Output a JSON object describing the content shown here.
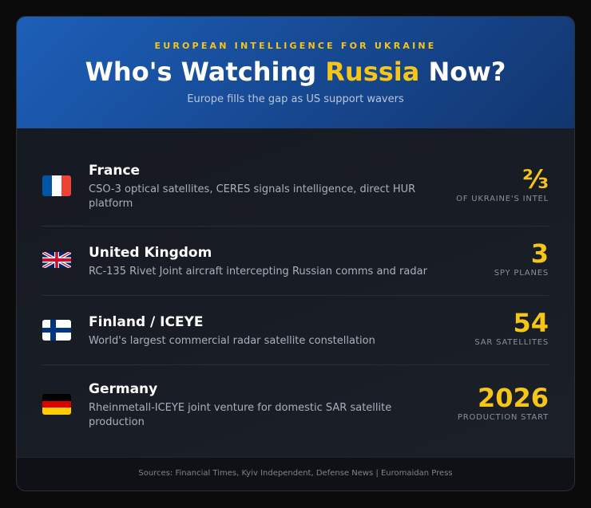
{
  "header": {
    "kicker": "EUROPEAN INTELLIGENCE FOR UKRAINE",
    "title_before": "Who's Watching ",
    "title_highlight": "Russia",
    "title_after": " Now?",
    "subtitle": "Europe fills the gap as US support wavers"
  },
  "rows": [
    {
      "country": "France",
      "description": "CSO-3 optical satellites, CERES signals intelligence, direct HUR platform",
      "stat_value": "⅔",
      "stat_label": "OF UKRAINE'S INTEL",
      "flag": "flag-france-icon"
    },
    {
      "country": "United Kingdom",
      "description": "RC-135 Rivet Joint aircraft intercepting Russian comms and radar",
      "stat_value": "3",
      "stat_label": "SPY PLANES",
      "flag": "flag-uk-icon"
    },
    {
      "country": "Finland / ICEYE",
      "description": "World's largest commercial radar satellite constellation",
      "stat_value": "54",
      "stat_label": "SAR SATELLITES",
      "flag": "flag-finland-icon"
    },
    {
      "country": "Germany",
      "description": "Rheinmetall-ICEYE joint venture for domestic SAR satellite production",
      "stat_value": "2026",
      "stat_label": "PRODUCTION START",
      "flag": "flag-germany-icon"
    }
  ],
  "footer": {
    "sources": "Sources: Financial Times, Kyiv Independent, Defense News | Euromaidan Press"
  },
  "colors": {
    "accent": "#f5c518",
    "header_blue": "#1d5fb8"
  }
}
